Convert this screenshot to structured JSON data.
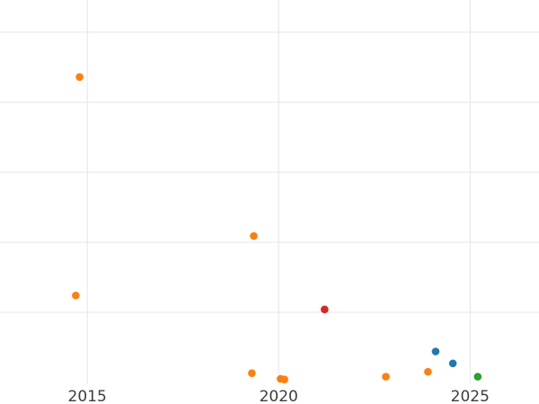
{
  "chart_data": {
    "type": "scatter",
    "title": "",
    "xlabel": "",
    "ylabel": "",
    "grid": true,
    "legend": "none",
    "note": "Cropped scatter plot; y-axis labels not visible, y values estimated in gridline units (1 unit = 1 horizontal gridline spacing above baseline).",
    "xlim": [
      2012.72,
      2026.8
    ],
    "ylim": [
      -0.31,
      5.46
    ],
    "x_ticks": [
      {
        "value": 2015,
        "label": "2015"
      },
      {
        "value": 2020,
        "label": "2020"
      },
      {
        "value": 2025,
        "label": "2025"
      }
    ],
    "y_gridlines": [
      1,
      2,
      3,
      4,
      5
    ],
    "series": [
      {
        "name": "orange",
        "color": "#ff7f0e",
        "points": [
          [
            2014.8,
            4.36
          ],
          [
            2014.7,
            1.24
          ],
          [
            2019.35,
            2.09
          ],
          [
            2019.3,
            0.13
          ],
          [
            2020.05,
            0.05
          ],
          [
            2020.15,
            0.04
          ],
          [
            2022.8,
            0.08
          ],
          [
            2023.9,
            0.15
          ]
        ]
      },
      {
        "name": "red",
        "color": "#d62728",
        "points": [
          [
            2021.2,
            1.04
          ]
        ]
      },
      {
        "name": "blue",
        "color": "#1f77b4",
        "points": [
          [
            2024.1,
            0.44
          ],
          [
            2024.55,
            0.27
          ]
        ]
      },
      {
        "name": "green",
        "color": "#2ca02c",
        "points": [
          [
            2025.2,
            0.08
          ]
        ]
      }
    ],
    "styles": {
      "background": "#ffffff",
      "grid_color": "#e5e5e5",
      "tick_label_color": "#3d3d3d"
    }
  }
}
